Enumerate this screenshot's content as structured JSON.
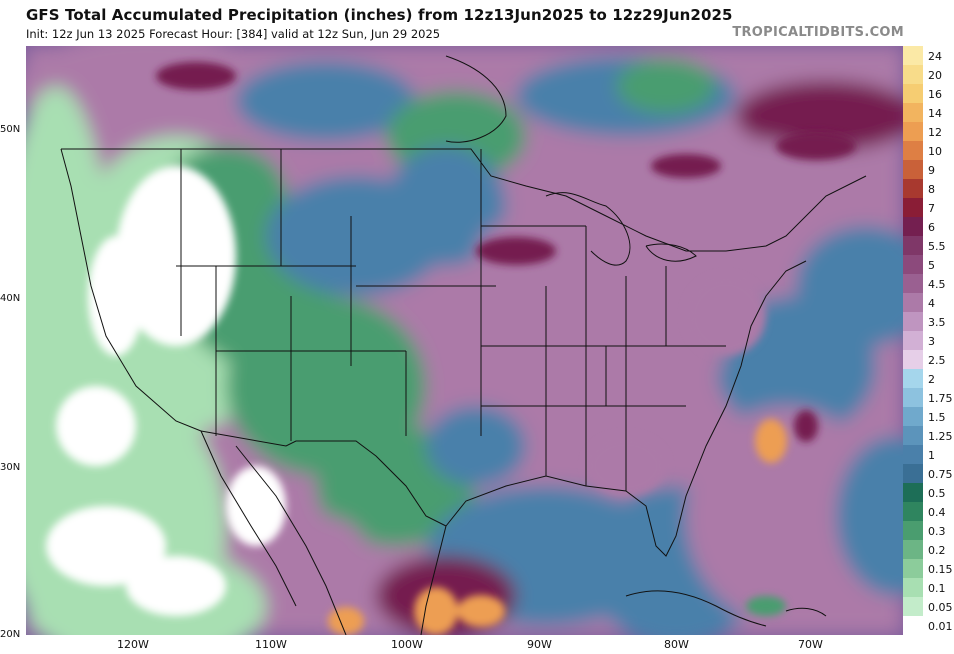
{
  "header": {
    "title": "GFS Total Accumulated Precipitation (inches) from 12z13Jun2025 to 12z29Jun2025",
    "subtitle": "Init: 12z Jun 13 2025   Forecast Hour: [384]   valid at 12z Sun, Jun 29 2025",
    "credit": "TROPICALTIDBITS.COM"
  },
  "axes": {
    "latitudes": [
      "50N",
      "40N",
      "30N",
      "20N"
    ],
    "longitudes": [
      "120W",
      "110W",
      "100W",
      "90W",
      "80W",
      "70W"
    ]
  },
  "legend": {
    "units": "inches",
    "levels": [
      {
        "label": "24",
        "color": "#fbe9a6"
      },
      {
        "label": "20",
        "color": "#f8dc8a"
      },
      {
        "label": "16",
        "color": "#f6cd72"
      },
      {
        "label": "14",
        "color": "#f2b45f"
      },
      {
        "label": "12",
        "color": "#ed9e52"
      },
      {
        "label": "10",
        "color": "#de7f44"
      },
      {
        "label": "9",
        "color": "#c96139"
      },
      {
        "label": "8",
        "color": "#a8392f"
      },
      {
        "label": "7",
        "color": "#8a1d36"
      },
      {
        "label": "6",
        "color": "#741f50"
      },
      {
        "label": "5.5",
        "color": "#7f3768"
      },
      {
        "label": "5",
        "color": "#8c4a7c"
      },
      {
        "label": "4.5",
        "color": "#9a6091"
      },
      {
        "label": "4",
        "color": "#ac7aa8"
      },
      {
        "label": "3.5",
        "color": "#bf95c0"
      },
      {
        "label": "3",
        "color": "#d2b0d5"
      },
      {
        "label": "2.5",
        "color": "#e6cfe8"
      },
      {
        "label": "2",
        "color": "#a5d6ec"
      },
      {
        "label": "1.75",
        "color": "#8dc2df"
      },
      {
        "label": "1.5",
        "color": "#70a9cc"
      },
      {
        "label": "1.25",
        "color": "#5c94bb"
      },
      {
        "label": "1",
        "color": "#4a80aa"
      },
      {
        "label": "0.75",
        "color": "#3a6f95"
      },
      {
        "label": "0.5",
        "color": "#1d6e57"
      },
      {
        "label": "0.4",
        "color": "#2f855f"
      },
      {
        "label": "0.3",
        "color": "#4a9d6f"
      },
      {
        "label": "0.2",
        "color": "#6cb585"
      },
      {
        "label": "0.15",
        "color": "#8ccc9b"
      },
      {
        "label": "0.1",
        "color": "#a8dfb2"
      },
      {
        "label": "0.05",
        "color": "#c3ecca"
      },
      {
        "label": "0.01",
        "color": "#ffffff"
      }
    ]
  },
  "colors": {
    "very_light": "#ffffff",
    "light": "#a8dfb2",
    "low": "#4a9d6f",
    "moderate": "#4a80aa",
    "high": "#ac7aa8",
    "very_high": "#741f50",
    "extreme": "#ed9e52",
    "borders": "#111111"
  }
}
